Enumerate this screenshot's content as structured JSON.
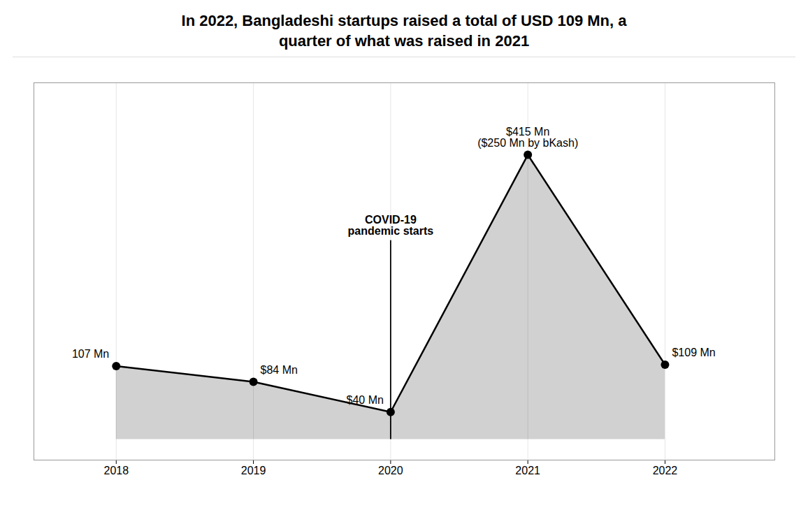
{
  "chart_data": {
    "type": "area",
    "title": "In 2022, Bangladeshi startups raised a total of USD 109 Mn, a\nquarter of what was raised in 2021",
    "x": [
      2018,
      2019,
      2020,
      2021,
      2022
    ],
    "values": [
      107,
      84,
      40,
      415,
      109
    ],
    "value_labels": [
      "107 Mn",
      "$84 Mn",
      "$40 Mn",
      "$415 Mn\n($250 Mn by bKash)",
      "$109 Mn"
    ],
    "data_labels": true,
    "xlim": [
      2017.4,
      2022.8
    ],
    "xticks": [
      2018,
      2019,
      2020,
      2021,
      2022
    ],
    "ylim": [
      -30,
      520
    ],
    "yticks": [],
    "tick_labels": "x",
    "grid": true,
    "annotations": [
      {
        "type": "vline",
        "x": 2020,
        "y": [
          0,
          290
        ],
        "text": "COVID-19\npandemic starts"
      }
    ]
  }
}
